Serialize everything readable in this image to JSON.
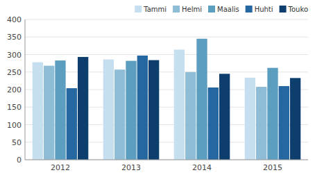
{
  "chart_data": {
    "type": "bar",
    "categories": [
      "2012",
      "2013",
      "2014",
      "2015"
    ],
    "series": [
      {
        "name": "Tammi",
        "color": "#c5dff0",
        "values": [
          278,
          286,
          314,
          234
        ]
      },
      {
        "name": "Helmi",
        "color": "#90bdd6",
        "values": [
          268,
          257,
          250,
          208
        ]
      },
      {
        "name": "Maalis",
        "color": "#5b9ec0",
        "values": [
          283,
          282,
          345,
          262
        ]
      },
      {
        "name": "Huhti",
        "color": "#2567a0",
        "values": [
          204,
          297,
          206,
          210
        ]
      },
      {
        "name": "Touko",
        "color": "#0d3e6e",
        "values": [
          293,
          284,
          245,
          233
        ]
      }
    ],
    "ylim": [
      0,
      400
    ],
    "yticks": [
      0,
      50,
      100,
      150,
      200,
      250,
      300,
      350,
      400
    ],
    "grid": true,
    "legend": "upper right"
  }
}
